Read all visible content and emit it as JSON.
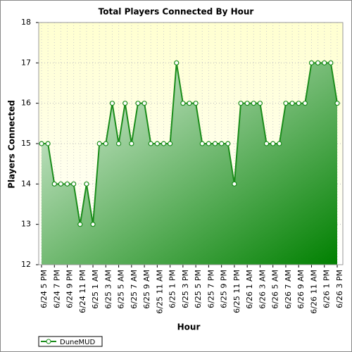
{
  "chart_data": {
    "type": "area",
    "title": "Total Players Connected By Hour",
    "x_label": "Hour",
    "y_label": "Players Connected",
    "categories": [
      "6/24 5 PM",
      null,
      "6/24 7 PM",
      null,
      "6/24 9 PM",
      null,
      "6/24 11 PM",
      null,
      "6/25 1 AM",
      null,
      "6/25 3 AM",
      null,
      "6/25 5 AM",
      null,
      "6/25 7 AM",
      null,
      "6/25 9 AM",
      null,
      "6/25 11 AM",
      null,
      "6/25 1 PM",
      null,
      "6/25 3 PM",
      null,
      "6/25 5 PM",
      null,
      "6/25 7 PM",
      null,
      "6/25 9 PM",
      null,
      "6/25 11 PM",
      null,
      "6/26 1 AM",
      null,
      "6/26 3 AM",
      null,
      "6/26 5 AM",
      null,
      "6/26 7 AM",
      null,
      "6/26 9 AM",
      null,
      "6/26 11 AM",
      null,
      "6/26 1 PM",
      null,
      "6/26 3 PM"
    ],
    "series": [
      {
        "name": "DuneMUD",
        "color": "#1a8c1a",
        "values": [
          15,
          15,
          14,
          14,
          14,
          14,
          13,
          14,
          13,
          15,
          15,
          16,
          15,
          16,
          15,
          16,
          16,
          15,
          15,
          15,
          15,
          17,
          16,
          16,
          16,
          15,
          15,
          15,
          15,
          15,
          14,
          16,
          16,
          16,
          16,
          15,
          15,
          15,
          16,
          16,
          16,
          16,
          17,
          17,
          17,
          17,
          16
        ]
      }
    ],
    "ylim": [
      12,
      18
    ],
    "yticks": [
      12,
      13,
      14,
      15,
      16,
      17,
      18
    ],
    "grid": true,
    "legend": "bottom-left"
  }
}
